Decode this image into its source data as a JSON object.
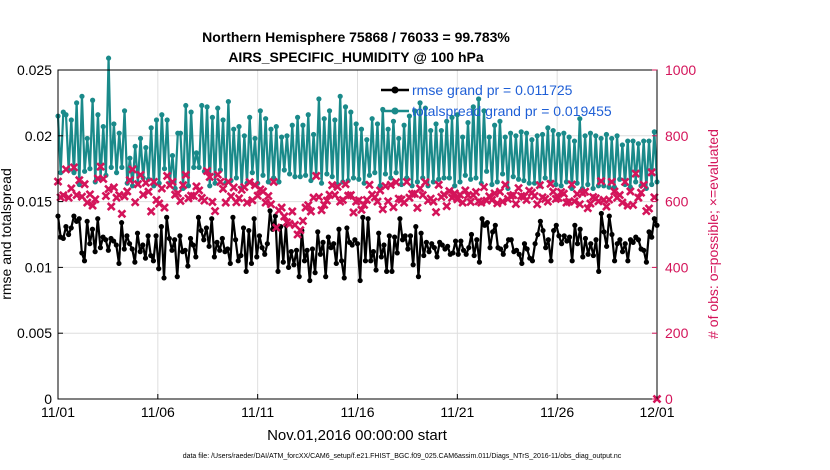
{
  "chart_data": {
    "type": "line",
    "title": "Northern Hemisphere 75868 / 76033 = 99.783%",
    "subtitle": "AIRS_SPECIFIC_HUMIDITY @ 100 hPa",
    "xlabel": "Nov.01,2016 00:00:00 start",
    "ylabel": "rmse and totalspread",
    "ylabel_right": "# of obs: o=possible; ×=evaluated",
    "footer": "data file: /Users/raeder/DAI/ATM_forcXX/CAM6_setup/f.e21.FHIST_BGC.f09_025.CAM6assim.011/Diags_NTrS_2016-11/obs_diag_output.nc",
    "x_range": [
      0,
      30
    ],
    "ylim": [
      0,
      0.025
    ],
    "ylim_right": [
      0,
      1000
    ],
    "x_ticks": [
      0,
      5,
      10,
      15,
      20,
      25,
      30
    ],
    "x_tick_labels": [
      "11/01",
      "11/06",
      "11/11",
      "11/16",
      "11/21",
      "11/26",
      "12/01"
    ],
    "y_ticks": [
      0,
      0.005,
      0.01,
      0.015,
      0.02,
      0.025
    ],
    "y_tick_labels": [
      "0",
      "0.005",
      "0.01",
      "0.015",
      "0.02",
      "0.025"
    ],
    "y_right_ticks": [
      0,
      200,
      400,
      600,
      800,
      1000
    ],
    "y_right_tick_labels": [
      "0",
      "200",
      "400",
      "600",
      "800",
      "1000"
    ],
    "legend": [
      {
        "label": "rmse grand pr = 0.011725",
        "color": "#000000"
      },
      {
        "label": "totalspread grand pr = 0.019455",
        "color": "#1a8a8a"
      }
    ],
    "series": [
      {
        "name": "rmse",
        "color": "#000000",
        "values": [
          0.0139,
          0.0123,
          0.0122,
          0.0131,
          0.0125,
          0.013,
          0.0139,
          0.0135,
          0.0137,
          0.0111,
          0.0105,
          0.0135,
          0.0118,
          0.0129,
          0.0112,
          0.0137,
          0.0115,
          0.0123,
          0.0121,
          0.0113,
          0.0122,
          0.012,
          0.0117,
          0.0103,
          0.0134,
          0.0114,
          0.0124,
          0.0118,
          0.0114,
          0.0104,
          0.0126,
          0.0112,
          0.0117,
          0.0107,
          0.0124,
          0.0109,
          0.0105,
          0.0124,
          0.0099,
          0.0131,
          0.0092,
          0.0138,
          0.0122,
          0.0113,
          0.0121,
          0.0093,
          0.0124,
          0.0112,
          0.0113,
          0.0101,
          0.0122,
          0.0117,
          0.0108,
          0.0138,
          0.0128,
          0.0121,
          0.013,
          0.0116,
          0.0137,
          0.0108,
          0.0119,
          0.0113,
          0.0122,
          0.0112,
          0.0114,
          0.0103,
          0.0138,
          0.0121,
          0.0105,
          0.0109,
          0.013,
          0.0097,
          0.0128,
          0.0103,
          0.0137,
          0.0108,
          0.0124,
          0.0115,
          0.011,
          0.0118,
          0.0143,
          0.0129,
          0.0139,
          0.0097,
          0.0131,
          0.0104,
          0.0132,
          0.01,
          0.0112,
          0.0102,
          0.0113,
          0.0093,
          0.0128,
          0.0105,
          0.0113,
          0.009,
          0.0114,
          0.0096,
          0.0127,
          0.011,
          0.0119,
          0.0093,
          0.0123,
          0.0115,
          0.0118,
          0.0103,
          0.0129,
          0.0105,
          0.0092,
          0.013,
          0.0119,
          0.0117,
          0.0121,
          0.0118,
          0.009,
          0.0138,
          0.0105,
          0.0137,
          0.0105,
          0.0112,
          0.0098,
          0.0126,
          0.0108,
          0.0117,
          0.0097,
          0.0124,
          0.0097,
          0.0123,
          0.0111,
          0.0137,
          0.0121,
          0.0124,
          0.0114,
          0.0124,
          0.0102,
          0.0131,
          0.0093,
          0.0126,
          0.0109,
          0.0119,
          0.0112,
          0.0118,
          0.0115,
          0.0108,
          0.0119,
          0.0117,
          0.0114,
          0.0116,
          0.011,
          0.0111,
          0.012,
          0.011,
          0.012,
          0.0113,
          0.011,
          0.0115,
          0.0125,
          0.0109,
          0.0121,
          0.0104,
          0.0137,
          0.0132,
          0.0134,
          0.0115,
          0.0127,
          0.0132,
          0.0115,
          0.0114,
          0.011,
          0.0116,
          0.0121,
          0.0121,
          0.0112,
          0.0113,
          0.011,
          0.0103,
          0.0118,
          0.0114,
          0.0107,
          0.0105,
          0.0118,
          0.0125,
          0.0135,
          0.0128,
          0.0115,
          0.0121,
          0.0105,
          0.0128,
          0.0132,
          0.0124,
          0.0118,
          0.0124,
          0.012,
          0.0123,
          0.0105,
          0.0132,
          0.0118,
          0.0129,
          0.0108,
          0.0122,
          0.011,
          0.0118,
          0.0109,
          0.0121,
          0.0097,
          0.0141,
          0.0127,
          0.0116,
          0.0139,
          0.0125,
          0.0105,
          0.0118,
          0.0121,
          0.0112,
          0.0118,
          0.0105,
          0.0121,
          0.0119,
          0.0123,
          0.0121,
          0.0114,
          0.0113,
          0.0104,
          0.0127,
          0.0123,
          0.0137,
          0.0132
        ]
      },
      {
        "name": "totalspread",
        "color": "#1a8a8a",
        "values": [
          0.0215,
          0.0172,
          0.0218,
          0.0216,
          0.0174,
          0.0212,
          0.0172,
          0.0225,
          0.0163,
          0.023,
          0.0173,
          0.0198,
          0.0175,
          0.0227,
          0.0165,
          0.0216,
          0.0168,
          0.0207,
          0.017,
          0.0259,
          0.0176,
          0.0209,
          0.0172,
          0.0202,
          0.0176,
          0.0219,
          0.0164,
          0.0183,
          0.0162,
          0.0192,
          0.0164,
          0.0198,
          0.0168,
          0.0191,
          0.0167,
          0.0206,
          0.0162,
          0.0212,
          0.0164,
          0.0216,
          0.0175,
          0.0212,
          0.0164,
          0.0185,
          0.016,
          0.0202,
          0.0202,
          0.016,
          0.0223,
          0.0162,
          0.0218,
          0.0176,
          0.0187,
          0.0176,
          0.0223,
          0.0173,
          0.0222,
          0.0162,
          0.0214,
          0.0164,
          0.0221,
          0.0174,
          0.0212,
          0.0164,
          0.0226,
          0.0166,
          0.0205,
          0.0168,
          0.0207,
          0.016,
          0.02,
          0.0164,
          0.0214,
          0.0172,
          0.0198,
          0.0164,
          0.0219,
          0.017,
          0.0213,
          0.0165,
          0.0205,
          0.0168,
          0.0207,
          0.0165,
          0.0199,
          0.0174,
          0.02,
          0.0171,
          0.0208,
          0.0169,
          0.0214,
          0.0169,
          0.0208,
          0.017,
          0.0216,
          0.0166,
          0.0201,
          0.017,
          0.0228,
          0.0164,
          0.0213,
          0.0171,
          0.0219,
          0.0169,
          0.0212,
          0.0163,
          0.023,
          0.0165,
          0.0222,
          0.0166,
          0.0218,
          0.0168,
          0.0209,
          0.0167,
          0.0205,
          0.0164,
          0.0197,
          0.017,
          0.0213,
          0.0172,
          0.0209,
          0.0162,
          0.022,
          0.0171,
          0.0205,
          0.0168,
          0.0211,
          0.0172,
          0.0198,
          0.0163,
          0.0208,
          0.0168,
          0.0215,
          0.0162,
          0.0219,
          0.0165,
          0.0225,
          0.0168,
          0.0221,
          0.0162,
          0.0204,
          0.0165,
          0.0209,
          0.0167,
          0.0204,
          0.0168,
          0.0211,
          0.0168,
          0.0214,
          0.0162,
          0.0216,
          0.0165,
          0.0199,
          0.017,
          0.021,
          0.0167,
          0.0222,
          0.0168,
          0.0228,
          0.0164,
          0.0219,
          0.0173,
          0.0199,
          0.0163,
          0.0208,
          0.0165,
          0.0211,
          0.0171,
          0.0199,
          0.016,
          0.0202,
          0.0169,
          0.02,
          0.0167,
          0.0203,
          0.0166,
          0.0202,
          0.0164,
          0.0197,
          0.0164,
          0.02,
          0.0162,
          0.0201,
          0.0168,
          0.0206,
          0.0165,
          0.0204,
          0.0163,
          0.0201,
          0.0162,
          0.0202,
          0.0165,
          0.0199,
          0.016,
          0.0196,
          0.0164,
          0.0213,
          0.016,
          0.02,
          0.0163,
          0.0202,
          0.016,
          0.02,
          0.0162,
          0.0198,
          0.0162,
          0.0201,
          0.0161,
          0.0198,
          0.0161,
          0.02,
          0.0167,
          0.0193,
          0.0163,
          0.0196,
          0.0161,
          0.0196,
          0.0165,
          0.0194,
          0.0162,
          0.0196,
          0.016,
          0.0196,
          0.0163,
          0.0203,
          0.0165
        ]
      },
      {
        "name": "obs_evaluated",
        "axis": "right",
        "color": "#d4145a",
        "values": [
          661,
          613,
          619,
          698,
          612,
          640,
          704,
          620,
          665,
          615,
          653,
          597,
          622,
          588,
          607,
          670,
          706,
          669,
          617,
          638,
          585,
          643,
          612,
          620,
          563,
          616,
          631,
          665,
          698,
          598,
          653,
          681,
          621,
          657,
          630,
          570,
          660,
          605,
          594,
          640,
          582,
          678,
          650,
          660,
          621,
          625,
          602,
          650,
          681,
          610,
          618,
          617,
          646,
          634,
          611,
          603,
          693,
          675,
          599,
          571,
          682,
          660,
          639,
          597,
          660,
          616,
          643,
          598,
          610,
          636,
          644,
          597,
          659,
          604,
          650,
          618,
          637,
          631,
          597,
          617,
          592,
          660,
          521,
          573,
          582,
          555,
          537,
          532,
          570,
          529,
          500,
          513,
          541,
          582,
          589,
          570,
          612,
          678,
          614,
          574,
          590,
          603,
          621,
          650,
          620,
          645,
          600,
          605,
          653,
          618,
          620,
          567,
          600,
          604,
          575,
          590,
          605,
          651,
          621,
          613,
          600,
          634,
          577,
          647,
          601,
          651,
          583,
          659,
          609,
          606,
          597,
          660,
          612,
          623,
          624,
          581,
          640,
          620,
          659,
          603,
          609,
          600,
          568,
          651,
          614,
          621,
          586,
          632,
          612,
          625,
          607,
          621,
          597,
          634,
          619,
          599,
          620,
          629,
          601,
          597,
          644,
          603,
          616,
          605,
          625,
          595,
          630,
          600,
          651,
          608,
          617,
          620,
          593,
          641,
          617,
          615,
          605,
          633,
          627,
          617,
          592,
          650,
          613,
          608,
          600,
          654,
          630,
          608,
          611,
          629,
          624,
          597,
          600,
          652,
          601,
          623,
          592,
          626,
          630,
          580,
          594,
          614,
          610,
          601,
          662,
          605,
          585,
          606,
          660,
          631,
          612,
          620,
          597,
          660,
          588,
          631,
          590,
          685,
          612,
          627,
          651,
          571,
          579,
          689,
          613,
          0
        ]
      }
    ]
  }
}
